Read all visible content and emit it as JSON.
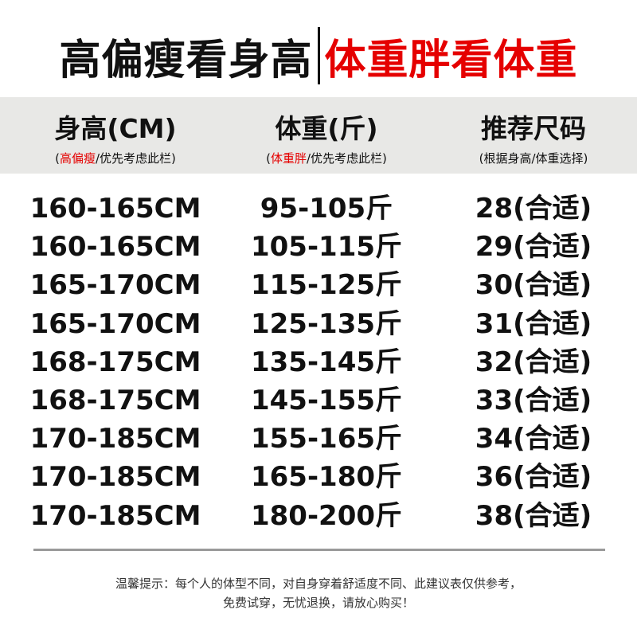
{
  "title": {
    "left": "高偏瘦看身高",
    "right": "体重胖看体重"
  },
  "colors": {
    "accent": "#e50000",
    "band": "#e8e8e6",
    "text": "#111111"
  },
  "headers": [
    {
      "label": "身高(CM)",
      "sub_open": "(",
      "sub_highlight": "高偏瘦",
      "sub_rest": "/优先考虑此栏)"
    },
    {
      "label": "体重(斤)",
      "sub_open": "(",
      "sub_highlight": "体重胖",
      "sub_rest": "/优先考虑此栏)"
    },
    {
      "label": "推荐尺码",
      "sub_open": "",
      "sub_highlight": "",
      "sub_rest": "(根据身高/体重选择)"
    }
  ],
  "rows": [
    {
      "height": "160-165CM",
      "weight": "95-105斤",
      "size": "28(合适)"
    },
    {
      "height": "160-165CM",
      "weight": "105-115斤",
      "size": "29(合适)"
    },
    {
      "height": "165-170CM",
      "weight": "115-125斤",
      "size": "30(合适)"
    },
    {
      "height": "165-170CM",
      "weight": "125-135斤",
      "size": "31(合适)"
    },
    {
      "height": "168-175CM",
      "weight": "135-145斤",
      "size": "32(合适)"
    },
    {
      "height": "168-175CM",
      "weight": "145-155斤",
      "size": "33(合适)"
    },
    {
      "height": "170-185CM",
      "weight": "155-165斤",
      "size": "34(合适)"
    },
    {
      "height": "170-185CM",
      "weight": "165-180斤",
      "size": "36(合适)"
    },
    {
      "height": "170-185CM",
      "weight": "180-200斤",
      "size": "38(合适)"
    }
  ],
  "note": {
    "line1": "温馨提示：每个人的体型不同，对自身穿着舒适度不同、此建议表仅供参考，",
    "line2": "免费试穿，无忧退换，请放心购买！"
  }
}
